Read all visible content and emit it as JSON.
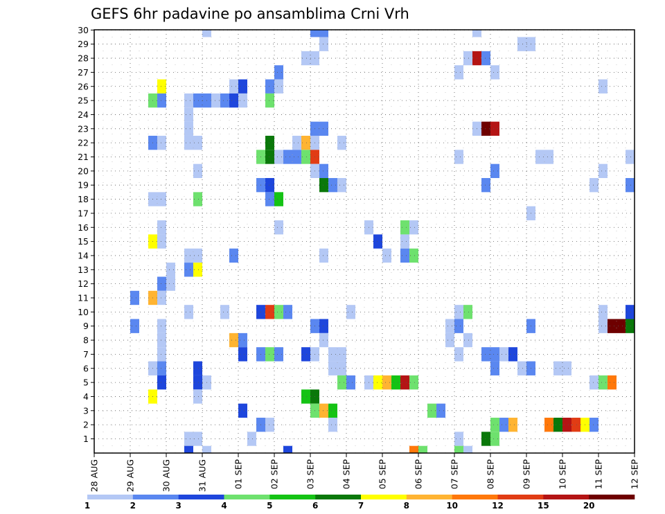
{
  "chart_data": {
    "type": "heatmap",
    "title": "GEFS 6hr padavine po ansamblima Crni Vrh",
    "xlabel": "",
    "ylabel": "",
    "x_ticks": [
      "28 AUG",
      "29 AUG",
      "30 AUG",
      "31 AUG",
      "01 SEP",
      "02 SEP",
      "03 SEP",
      "04 SEP",
      "05 SEP",
      "06 SEP",
      "07 SEP",
      "08 SEP",
      "09 SEP",
      "10 SEP",
      "11 SEP",
      "12 SEP"
    ],
    "y_ticks": [
      "1",
      "2",
      "3",
      "4",
      "5",
      "6",
      "7",
      "8",
      "9",
      "10",
      "11",
      "12",
      "13",
      "14",
      "15",
      "16",
      "17",
      "18",
      "19",
      "20",
      "21",
      "22",
      "23",
      "24",
      "25",
      "26",
      "27",
      "28",
      "29",
      "30"
    ],
    "xlim": [
      0,
      60
    ],
    "ylim": [
      0,
      30
    ],
    "x_unit": "6-hour steps from 28 AUG 00Z",
    "y_unit": "ensemble member",
    "grid": true,
    "legend": {
      "position": "bottom",
      "levels": [
        "1",
        "2",
        "3",
        "4",
        "5",
        "6",
        "7",
        "8",
        "10",
        "12",
        "15",
        "20"
      ],
      "colors": [
        "#b4c8f5",
        "#5a87f0",
        "#1e46dc",
        "#6ee16e",
        "#14c314",
        "#0a780a",
        "#ffff00",
        "#ffb432",
        "#ff780a",
        "#e13c14",
        "#b41414",
        "#6e0000"
      ]
    },
    "cells": [
      [
        12,
        30,
        1
      ],
      [
        24,
        30,
        2
      ],
      [
        25,
        30,
        2
      ],
      [
        42,
        30,
        1
      ],
      [
        25,
        29,
        1
      ],
      [
        47,
        29,
        1
      ],
      [
        48,
        29,
        1
      ],
      [
        23,
        28,
        1
      ],
      [
        24,
        28,
        1
      ],
      [
        41,
        28,
        1
      ],
      [
        42,
        28,
        11
      ],
      [
        43,
        28,
        2
      ],
      [
        20,
        27,
        2
      ],
      [
        40,
        27,
        1
      ],
      [
        44,
        27,
        1
      ],
      [
        7,
        26,
        7
      ],
      [
        15,
        26,
        1
      ],
      [
        16,
        26,
        3
      ],
      [
        19,
        26,
        2
      ],
      [
        20,
        26,
        1
      ],
      [
        56,
        26,
        1
      ],
      [
        6,
        25,
        4
      ],
      [
        7,
        25,
        2
      ],
      [
        10,
        25,
        1
      ],
      [
        11,
        25,
        2
      ],
      [
        12,
        25,
        2
      ],
      [
        13,
        25,
        1
      ],
      [
        14,
        25,
        2
      ],
      [
        15,
        25,
        3
      ],
      [
        16,
        25,
        1
      ],
      [
        19,
        25,
        4
      ],
      [
        10,
        24,
        1
      ],
      [
        10,
        23,
        1
      ],
      [
        24,
        23,
        2
      ],
      [
        25,
        23,
        2
      ],
      [
        42,
        23,
        1
      ],
      [
        43,
        23,
        12
      ],
      [
        44,
        23,
        11
      ],
      [
        6,
        22,
        2
      ],
      [
        7,
        22,
        1
      ],
      [
        10,
        22,
        1
      ],
      [
        11,
        22,
        1
      ],
      [
        19,
        22,
        6
      ],
      [
        22,
        22,
        1
      ],
      [
        23,
        22,
        8
      ],
      [
        24,
        22,
        1
      ],
      [
        27,
        22,
        1
      ],
      [
        18,
        21,
        4
      ],
      [
        19,
        21,
        6
      ],
      [
        20,
        21,
        1
      ],
      [
        21,
        21,
        2
      ],
      [
        22,
        21,
        2
      ],
      [
        23,
        21,
        4
      ],
      [
        24,
        21,
        10
      ],
      [
        40,
        21,
        1
      ],
      [
        49,
        21,
        1
      ],
      [
        50,
        21,
        1
      ],
      [
        59,
        21,
        1
      ],
      [
        11,
        20,
        1
      ],
      [
        24,
        20,
        1
      ],
      [
        25,
        20,
        2
      ],
      [
        44,
        20,
        2
      ],
      [
        56,
        20,
        1
      ],
      [
        18,
        19,
        2
      ],
      [
        19,
        19,
        3
      ],
      [
        25,
        19,
        6
      ],
      [
        26,
        19,
        2
      ],
      [
        27,
        19,
        1
      ],
      [
        43,
        19,
        2
      ],
      [
        55,
        19,
        1
      ],
      [
        59,
        19,
        2
      ],
      [
        6,
        18,
        1
      ],
      [
        7,
        18,
        1
      ],
      [
        11,
        18,
        4
      ],
      [
        19,
        18,
        2
      ],
      [
        20,
        18,
        5
      ],
      [
        48,
        17,
        1
      ],
      [
        7,
        16,
        1
      ],
      [
        20,
        16,
        1
      ],
      [
        30,
        16,
        1
      ],
      [
        34,
        16,
        4
      ],
      [
        35,
        16,
        1
      ],
      [
        6,
        15,
        7
      ],
      [
        7,
        15,
        1
      ],
      [
        31,
        15,
        3
      ],
      [
        34,
        15,
        1
      ],
      [
        10,
        14,
        1
      ],
      [
        11,
        14,
        1
      ],
      [
        15,
        14,
        2
      ],
      [
        25,
        14,
        1
      ],
      [
        32,
        14,
        1
      ],
      [
        34,
        14,
        2
      ],
      [
        35,
        14,
        4
      ],
      [
        8,
        13,
        1
      ],
      [
        10,
        13,
        2
      ],
      [
        11,
        13,
        7
      ],
      [
        7,
        12,
        2
      ],
      [
        8,
        12,
        1
      ],
      [
        4,
        11,
        2
      ],
      [
        6,
        11,
        8
      ],
      [
        7,
        11,
        1
      ],
      [
        10,
        10,
        1
      ],
      [
        14,
        10,
        1
      ],
      [
        18,
        10,
        3
      ],
      [
        19,
        10,
        10
      ],
      [
        20,
        10,
        4
      ],
      [
        21,
        10,
        2
      ],
      [
        28,
        10,
        1
      ],
      [
        40,
        10,
        1
      ],
      [
        41,
        10,
        4
      ],
      [
        56,
        10,
        1
      ],
      [
        59,
        10,
        3
      ],
      [
        4,
        9,
        2
      ],
      [
        7,
        9,
        1
      ],
      [
        24,
        9,
        2
      ],
      [
        25,
        9,
        3
      ],
      [
        39,
        9,
        1
      ],
      [
        40,
        9,
        2
      ],
      [
        48,
        9,
        2
      ],
      [
        56,
        9,
        1
      ],
      [
        57,
        9,
        12
      ],
      [
        58,
        9,
        12
      ],
      [
        59,
        9,
        6
      ],
      [
        7,
        8,
        1
      ],
      [
        15,
        8,
        8
      ],
      [
        16,
        8,
        2
      ],
      [
        25,
        8,
        1
      ],
      [
        39,
        8,
        1
      ],
      [
        41,
        8,
        1
      ],
      [
        7,
        7,
        1
      ],
      [
        16,
        7,
        3
      ],
      [
        18,
        7,
        2
      ],
      [
        19,
        7,
        4
      ],
      [
        20,
        7,
        2
      ],
      [
        23,
        7,
        3
      ],
      [
        24,
        7,
        1
      ],
      [
        26,
        7,
        1
      ],
      [
        27,
        7,
        1
      ],
      [
        40,
        7,
        1
      ],
      [
        43,
        7,
        2
      ],
      [
        44,
        7,
        2
      ],
      [
        45,
        7,
        1
      ],
      [
        46,
        7,
        3
      ],
      [
        6,
        6,
        1
      ],
      [
        7,
        6,
        2
      ],
      [
        11,
        6,
        3
      ],
      [
        26,
        6,
        1
      ],
      [
        27,
        6,
        1
      ],
      [
        44,
        6,
        2
      ],
      [
        47,
        6,
        1
      ],
      [
        48,
        6,
        2
      ],
      [
        51,
        6,
        1
      ],
      [
        52,
        6,
        1
      ],
      [
        7,
        5,
        3
      ],
      [
        11,
        5,
        3
      ],
      [
        12,
        5,
        1
      ],
      [
        27,
        5,
        4
      ],
      [
        28,
        5,
        2
      ],
      [
        30,
        5,
        1
      ],
      [
        31,
        5,
        7
      ],
      [
        32,
        5,
        8
      ],
      [
        33,
        5,
        5
      ],
      [
        34,
        5,
        11
      ],
      [
        35,
        5,
        4
      ],
      [
        55,
        5,
        1
      ],
      [
        56,
        5,
        4
      ],
      [
        57,
        5,
        9
      ],
      [
        6,
        4,
        7
      ],
      [
        11,
        4,
        1
      ],
      [
        23,
        4,
        5
      ],
      [
        24,
        4,
        6
      ],
      [
        16,
        3,
        3
      ],
      [
        24,
        3,
        4
      ],
      [
        25,
        3,
        8
      ],
      [
        26,
        3,
        5
      ],
      [
        37,
        3,
        4
      ],
      [
        38,
        3,
        2
      ],
      [
        18,
        2,
        2
      ],
      [
        19,
        2,
        1
      ],
      [
        26,
        2,
        1
      ],
      [
        44,
        2,
        4
      ],
      [
        45,
        2,
        2
      ],
      [
        46,
        2,
        8
      ],
      [
        50,
        2,
        9
      ],
      [
        51,
        2,
        6
      ],
      [
        52,
        2,
        11
      ],
      [
        53,
        2,
        10
      ],
      [
        54,
        2,
        7
      ],
      [
        55,
        2,
        2
      ],
      [
        10,
        1,
        1
      ],
      [
        11,
        1,
        1
      ],
      [
        17,
        1,
        1
      ],
      [
        40,
        1,
        1
      ],
      [
        43,
        1,
        6
      ],
      [
        44,
        1,
        4
      ],
      [
        10,
        0,
        3
      ],
      [
        12,
        0,
        1
      ],
      [
        21,
        0,
        3
      ],
      [
        35,
        0,
        9
      ],
      [
        36,
        0,
        4
      ],
      [
        40,
        0,
        4
      ],
      [
        41,
        0,
        1
      ],
      [
        11,
        -1,
        3
      ],
      [
        15,
        -1,
        2
      ],
      [
        18,
        -1,
        1
      ],
      [
        19,
        -1,
        2
      ],
      [
        20,
        -1,
        2
      ],
      [
        21,
        -1,
        1
      ],
      [
        22,
        -1,
        4
      ],
      [
        23,
        -1,
        1
      ]
    ]
  }
}
